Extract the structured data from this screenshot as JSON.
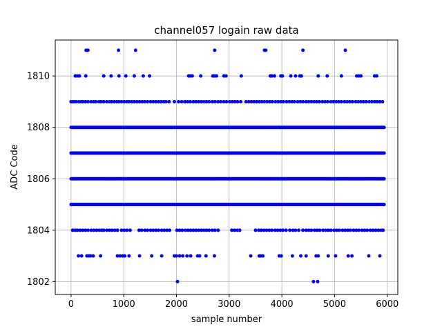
{
  "chart_data": {
    "type": "scatter",
    "title": "channel057 logain raw data",
    "xlabel": "sample number",
    "ylabel": "ADC Code",
    "xlim": [
      -300,
      6200
    ],
    "ylim": [
      1801.5,
      1811.4
    ],
    "xticks": [
      0,
      1000,
      2000,
      3000,
      4000,
      5000,
      6000
    ],
    "yticks": [
      1802,
      1804,
      1806,
      1808,
      1810
    ],
    "grid": true,
    "marker_color": "#0000ff",
    "x_range": [
      0,
      5940
    ],
    "dense_levels": [
      1805,
      1806,
      1807,
      1808
    ],
    "series": [
      {
        "values": [
          {
            "y": 1811,
            "x": [
              285,
              300,
              320,
              900,
              1225,
              2725,
              3670,
              3695,
              4400,
              5205
            ]
          },
          {
            "y": 1810,
            "x": [
              80,
              120,
              160,
              280,
              620,
              760,
              910,
              1040,
              1200,
              1370,
              1490,
              2230,
              2260,
              2300,
              2460,
              2690,
              2720,
              2760,
              2900,
              2940,
              3230,
              3780,
              3810,
              3860,
              3980,
              4010,
              4170,
              4260,
              4340,
              4370,
              4690,
              4860,
              5130,
              5420,
              5460,
              5500,
              5760,
              5800
            ]
          },
          {
            "y": 1809,
            "x": [
              0,
              30,
              60,
              100,
              150,
              190,
              220,
              270,
              320,
              380,
              430,
              470,
              530,
              570,
              620,
              680,
              730,
              770,
              820,
              870,
              910,
              960,
              1010,
              1060,
              1100,
              1150,
              1200,
              1250,
              1300,
              1350,
              1400,
              1450,
              1510,
              1560,
              1610,
              1660,
              1710,
              1760,
              1800,
              1860,
              1960,
              2040,
              2100,
              2160,
              2210,
              2260,
              2320,
              2370,
              2420,
              2470,
              2520,
              2570,
              2620,
              2680,
              2730,
              2790,
              2840,
              2900,
              2950,
              3010,
              3060,
              3110,
              3160,
              3220,
              3320,
              3370,
              3420,
              3470,
              3520,
              3570,
              3620,
              3670,
              3720,
              3770,
              3820,
              3880,
              3930,
              3980,
              4030,
              4090,
              4140,
              4190,
              4240,
              4300,
              4350,
              4400,
              4460,
              4510,
              4560,
              4610,
              4660,
              4710,
              4770,
              4820,
              4870,
              4930,
              4980,
              5030,
              5080,
              5130,
              5190,
              5240,
              5290,
              5340,
              5400,
              5450,
              5500,
              5550,
              5600,
              5660,
              5710,
              5760,
              5810,
              5860,
              5910
            ]
          },
          {
            "y": 1804,
            "x": [
              30,
              80,
              120,
              170,
              220,
              270,
              320,
              380,
              430,
              480,
              530,
              580,
              620,
              680,
              730,
              780,
              830,
              880,
              960,
              1010,
              1060,
              1120,
              1290,
              1340,
              1400,
              1450,
              1510,
              1560,
              1610,
              1660,
              1720,
              1770,
              1820,
              1870,
              2010,
              2060,
              2110,
              2170,
              2220,
              2270,
              2320,
              2370,
              2420,
              2470,
              2520,
              2570,
              2620,
              2680,
              2730,
              2790,
              3050,
              3100,
              3150,
              3200,
              3500,
              3560,
              3610,
              3660,
              3710,
              3760,
              3810,
              3870,
              3920,
              3970,
              4020,
              4080,
              4150,
              4210,
              4260,
              4320,
              4400,
              4460,
              4510,
              4560,
              4620,
              4670,
              4720,
              4780,
              4830,
              4880,
              4930,
              4990,
              5040,
              5090,
              5150,
              5200,
              5250,
              5300,
              5360,
              5410,
              5460,
              5520,
              5570,
              5620,
              5680,
              5730,
              5780,
              5830,
              5880,
              5920
            ]
          },
          {
            "y": 1803,
            "x": [
              140,
              200,
              300,
              340,
              370,
              420,
              560,
              880,
              930,
              980,
              1020,
              1100,
              1300,
              1530,
              1720,
              1960,
              2000,
              2060,
              2120,
              2200,
              2270,
              2400,
              2440,
              2560,
              2720,
              3410,
              3570,
              3600,
              3640,
              3950,
              3990,
              4200,
              4360,
              4460,
              4650,
              4690,
              4880,
              5020,
              5260,
              5330,
              5650,
              5860
            ]
          },
          {
            "y": 1802,
            "x": [
              2020,
              4600,
              4680
            ]
          }
        ]
      }
    ]
  }
}
